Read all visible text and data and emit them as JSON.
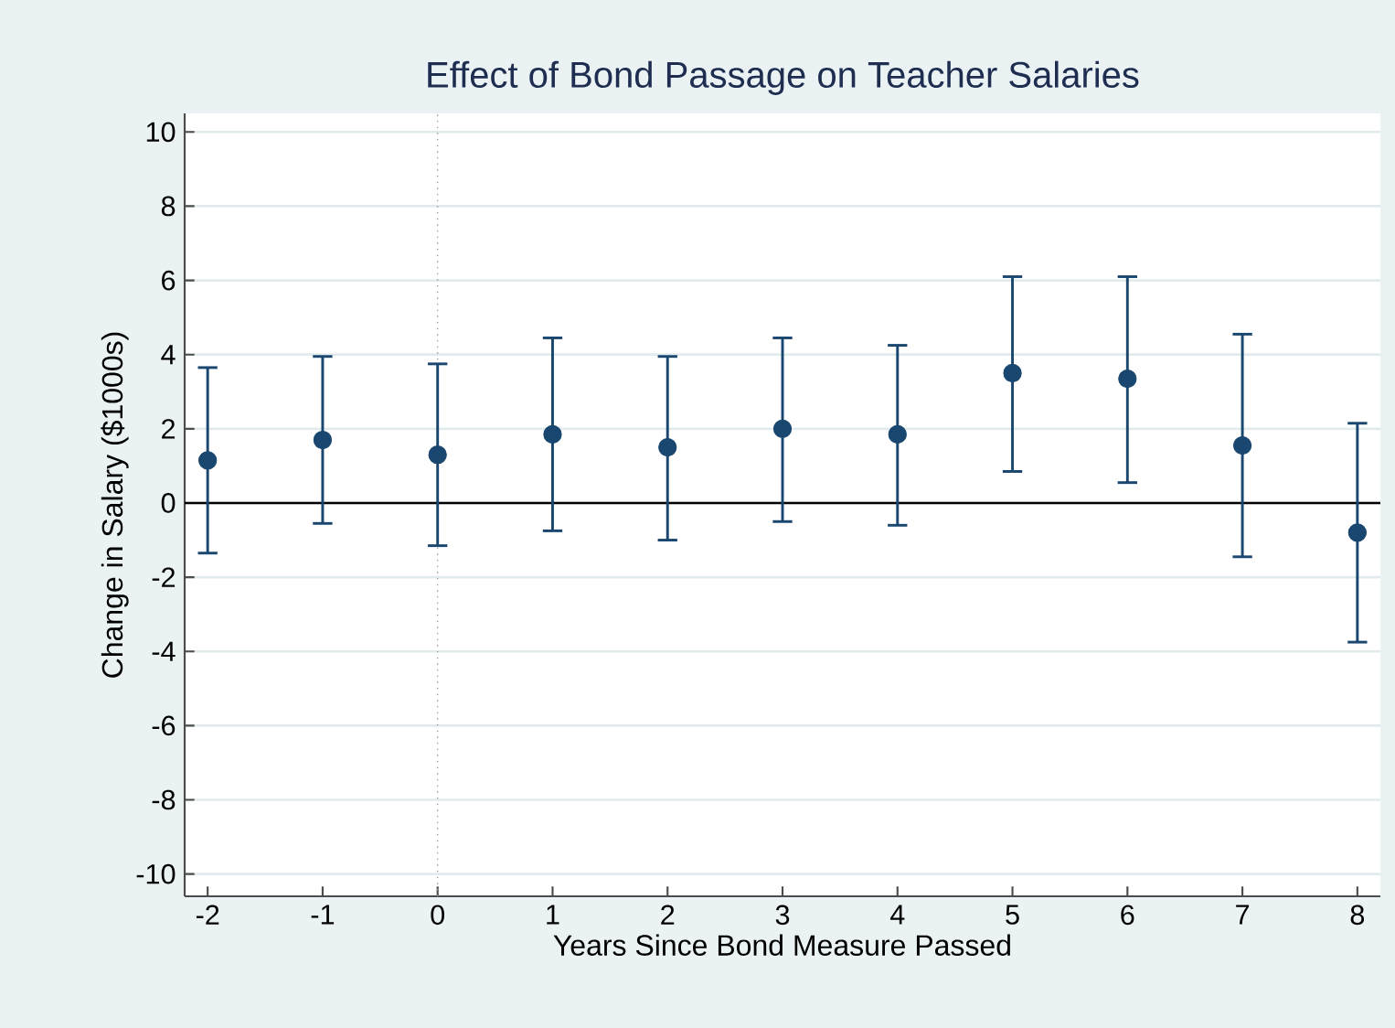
{
  "chart_data": {
    "type": "scatter",
    "title": "Effect of Bond Passage on Teacher Salaries",
    "xlabel": "Years Since Bond Measure Passed",
    "ylabel": "Change in Salary ($1000s)",
    "x": [
      -2,
      -1,
      0,
      1,
      2,
      3,
      4,
      5,
      6,
      7,
      8
    ],
    "values": [
      1.15,
      1.7,
      1.3,
      1.85,
      1.5,
      2.0,
      1.85,
      3.5,
      3.35,
      1.55,
      -0.8
    ],
    "errors": [
      [
        -1.35,
        3.65
      ],
      [
        -0.55,
        3.95
      ],
      [
        -1.15,
        3.75
      ],
      [
        -0.75,
        4.45
      ],
      [
        -1.0,
        3.95
      ],
      [
        -0.5,
        4.45
      ],
      [
        -0.6,
        4.25
      ],
      [
        0.85,
        6.1
      ],
      [
        0.55,
        6.1
      ],
      [
        -1.45,
        4.55
      ],
      [
        -3.75,
        2.15
      ]
    ],
    "color": "#1a476f",
    "marker": "circle",
    "xlim": [
      -2.2,
      8.2
    ],
    "ylim": [
      -10.6,
      10.5
    ],
    "xticks": [
      -2,
      -1,
      0,
      1,
      2,
      3,
      4,
      5,
      6,
      7,
      8
    ],
    "yticks": [
      -10,
      -8,
      -6,
      -4,
      -2,
      0,
      2,
      4,
      6,
      8,
      10
    ],
    "grid": "y",
    "ref_lines": [
      {
        "axis": "y",
        "value": 0,
        "color": "#000000",
        "line_style": "solid"
      },
      {
        "axis": "x",
        "value": 0,
        "color": "#999999",
        "line_style": "dotted"
      }
    ]
  }
}
